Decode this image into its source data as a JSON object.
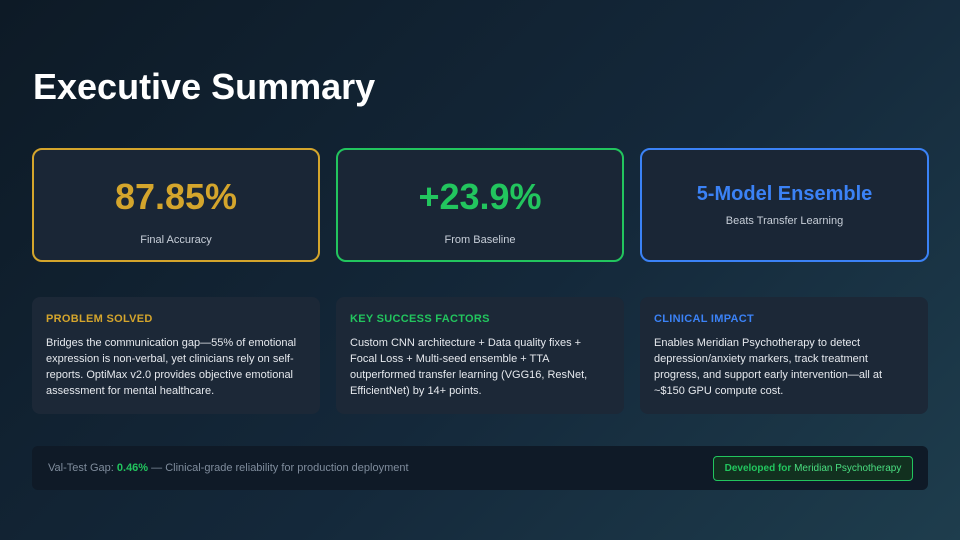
{
  "title": "Executive Summary",
  "metrics": [
    {
      "value": "87.85%",
      "label": "Final Accuracy"
    },
    {
      "value": "+23.9%",
      "label": "From Baseline"
    },
    {
      "value": "5-Model Ensemble",
      "label": "Beats Transfer Learning"
    }
  ],
  "cards": [
    {
      "heading": "PROBLEM SOLVED",
      "body": "Bridges the communication gap—55% of emotional expression is non-verbal, yet clinicians rely on self-reports. OptiMax v2.0 provides objective emotional assessment for mental healthcare."
    },
    {
      "heading": "KEY SUCCESS FACTORS",
      "body": "Custom CNN architecture + Data quality fixes + Focal Loss + Multi-seed ensemble + TTA outperformed transfer learning (VGG16, ResNet, EfficientNet) by 14+ points."
    },
    {
      "heading": "CLINICAL IMPACT",
      "body": "Enables Meridian Psychotherapy to detect depression/anxiety markers, track treatment progress, and support early intervention—all at ~$150 GPU compute cost."
    }
  ],
  "footer": {
    "label": "Val-Test Gap:",
    "highlight": "0.46%",
    "text": "— Clinical-grade reliability for production deployment",
    "badge": {
      "prefix": "Developed for",
      "name": "Meridian Psychotherapy"
    }
  }
}
